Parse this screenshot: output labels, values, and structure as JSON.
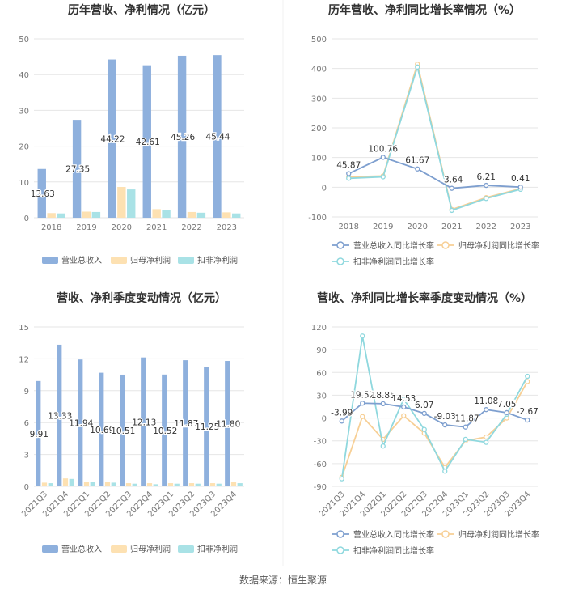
{
  "colors": {
    "revenue": "#8eb0dd",
    "net_profit": "#fde1b2",
    "deducted_profit": "#a9e2e6",
    "revenue_line": "#7e9fcf",
    "net_line": "#f7cf95",
    "deducted_line": "#8fd8de",
    "grid": "#e6e6e6",
    "axis_text": "#777777",
    "title": "#333333",
    "label": "#333333"
  },
  "chart_data": [
    {
      "id": "annual_amounts",
      "type": "bar",
      "title": "历年营收、净利情况（亿元）",
      "categories": [
        "2018",
        "2019",
        "2020",
        "2021",
        "2022",
        "2023"
      ],
      "ylim": [
        0,
        50
      ],
      "yticks": [
        0,
        10,
        20,
        30,
        40,
        50
      ],
      "series": [
        {
          "name": "营业总收入",
          "values": [
            13.63,
            27.35,
            44.22,
            42.61,
            45.26,
            45.44
          ],
          "labels": [
            "13.63",
            "27.35",
            "44.22",
            "42.61",
            "45.26",
            "45.44"
          ]
        },
        {
          "name": "归母净利润",
          "values": [
            1.3,
            1.7,
            8.6,
            2.4,
            1.6,
            1.5
          ]
        },
        {
          "name": "扣非净利润",
          "values": [
            1.2,
            1.6,
            7.9,
            2.1,
            1.4,
            1.2
          ]
        }
      ],
      "legend": [
        "营业总收入",
        "归母净利润",
        "扣非净利润"
      ]
    },
    {
      "id": "annual_growth",
      "type": "line",
      "title": "历年营收、净利同比增长率情况（%）",
      "categories": [
        "2018",
        "2019",
        "2020",
        "2021",
        "2022",
        "2023"
      ],
      "ylim": [
        -100,
        500
      ],
      "yticks": [
        -100,
        0,
        100,
        200,
        300,
        400,
        500
      ],
      "series": [
        {
          "name": "营业总收入同比增长率",
          "values": [
            45.87,
            100.76,
            61.67,
            -3.64,
            6.21,
            0.41
          ],
          "labels": [
            "45.87",
            "100.76",
            "61.67",
            "-3.64",
            "6.21",
            "0.41"
          ]
        },
        {
          "name": "归母净利润同比增长率",
          "values": [
            35,
            38,
            415,
            -75,
            -35,
            -5
          ]
        },
        {
          "name": "扣非净利润同比增长率",
          "values": [
            30,
            35,
            405,
            -78,
            -38,
            -7
          ]
        }
      ],
      "legend": [
        "营业总收入同比增长率",
        "归母净利润同比增长率",
        "扣非净利润同比增长率"
      ]
    },
    {
      "id": "quarterly_amounts",
      "type": "bar",
      "title": "营收、净利季度变动情况（亿元）",
      "categories": [
        "2021Q3",
        "2021Q4",
        "2022Q1",
        "2022Q2",
        "2022Q3",
        "2022Q4",
        "2023Q1",
        "2023Q2",
        "2023Q3",
        "2023Q4"
      ],
      "ylim": [
        0,
        15
      ],
      "yticks": [
        0,
        3,
        6,
        9,
        12,
        15
      ],
      "series": [
        {
          "name": "营业总收入",
          "values": [
            9.91,
            13.33,
            11.94,
            10.69,
            10.51,
            12.13,
            10.52,
            11.87,
            11.25,
            11.8
          ],
          "labels": [
            "9.91",
            "13.33",
            "11.94",
            "10.69",
            "10.51",
            "12.13",
            "10.52",
            "11.87",
            "11.25",
            "11.80"
          ]
        },
        {
          "name": "归母净利润",
          "values": [
            0.35,
            0.75,
            0.45,
            0.4,
            0.3,
            0.3,
            0.3,
            0.3,
            0.3,
            0.4
          ]
        },
        {
          "name": "扣非净利润",
          "values": [
            0.3,
            0.7,
            0.4,
            0.35,
            0.25,
            0.2,
            0.25,
            0.25,
            0.25,
            0.3
          ]
        }
      ],
      "legend": [
        "营业总收入",
        "归母净利润",
        "扣非净利润"
      ]
    },
    {
      "id": "quarterly_growth",
      "type": "line",
      "title": "营收、净利同比增长率季度变动情况（%）",
      "categories": [
        "2021Q3",
        "2021Q4",
        "2022Q1",
        "2022Q2",
        "2022Q3",
        "2022Q4",
        "2023Q1",
        "2023Q2",
        "2023Q3",
        "2023Q4"
      ],
      "ylim": [
        -90,
        120
      ],
      "yticks": [
        -90,
        -60,
        -30,
        0,
        30,
        60,
        90,
        120
      ],
      "series": [
        {
          "name": "营业总收入同比增长率",
          "values": [
            -3.99,
            19.52,
            18.85,
            14.53,
            6.07,
            -9.03,
            -11.87,
            11.08,
            7.05,
            -2.67
          ],
          "labels": [
            "-3.99",
            "19.52",
            "18.85",
            "14.53",
            "6.07",
            "-9.03",
            "-11.87",
            "11.08",
            "7.05",
            "-2.67"
          ]
        },
        {
          "name": "归母净利润同比增长率",
          "values": [
            -78,
            2,
            -28,
            3,
            -20,
            -65,
            -30,
            -25,
            0,
            48
          ]
        },
        {
          "name": "扣非净利润同比增长率",
          "values": [
            -80,
            108,
            -37,
            25,
            -15,
            -70,
            -28,
            -32,
            5,
            55
          ]
        }
      ],
      "legend": [
        "营业总收入同比增长率",
        "归母净利润同比增长率",
        "扣非净利润同比增长率"
      ]
    }
  ],
  "source": "数据来源：恒生聚源"
}
